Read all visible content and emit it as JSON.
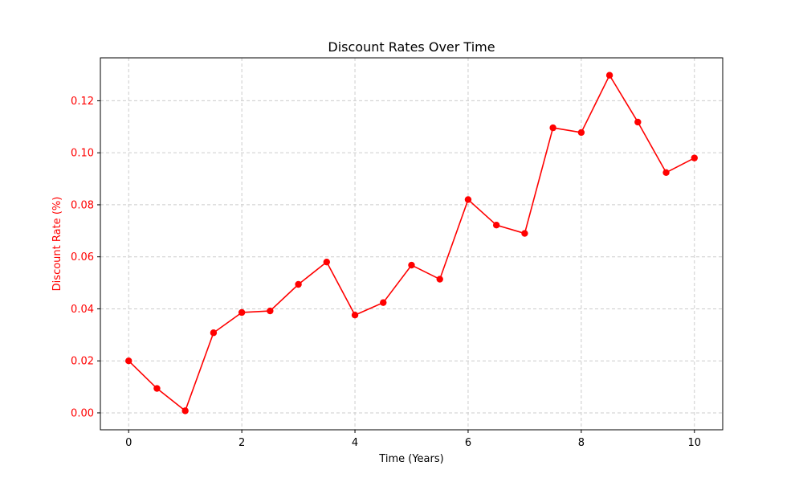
{
  "chart_data": {
    "type": "line",
    "title": "Discount Rates Over Time",
    "xlabel": "Time (Years)",
    "ylabel": "Discount Rate (%)",
    "xlim": [
      -0.5,
      10.5
    ],
    "ylim": [
      -0.0065,
      0.1365
    ],
    "x_ticks": [
      0,
      2,
      4,
      6,
      8,
      10
    ],
    "x_tick_labels": [
      "0",
      "2",
      "4",
      "6",
      "8",
      "10"
    ],
    "y_ticks": [
      0.0,
      0.02,
      0.04,
      0.06,
      0.08,
      0.1,
      0.12
    ],
    "y_tick_labels": [
      "0.00",
      "0.02",
      "0.04",
      "0.06",
      "0.08",
      "0.10",
      "0.12"
    ],
    "grid": true,
    "grid_style": "dashed",
    "series": [
      {
        "color": "#ff0000",
        "marker": "circle",
        "x": [
          0,
          0.5,
          1,
          1.5,
          2,
          2.5,
          3,
          3.5,
          4,
          4.5,
          5,
          5.5,
          6,
          6.5,
          7,
          7.5,
          8,
          8.5,
          9,
          9.5,
          10
        ],
        "y": [
          0.02,
          0.0094,
          0.0008,
          0.0308,
          0.0386,
          0.0392,
          0.0494,
          0.058,
          0.0376,
          0.0424,
          0.0568,
          0.0514,
          0.082,
          0.0722,
          0.069,
          0.1096,
          0.1078,
          0.1298,
          0.1118,
          0.0924,
          0.098
        ]
      }
    ],
    "colors": {
      "line": "#ff0000",
      "ylabel": "#ff0000",
      "ytick": "#ff0000",
      "xtick": "#000000",
      "grid": "#cccccc",
      "frame": "#000000"
    }
  }
}
